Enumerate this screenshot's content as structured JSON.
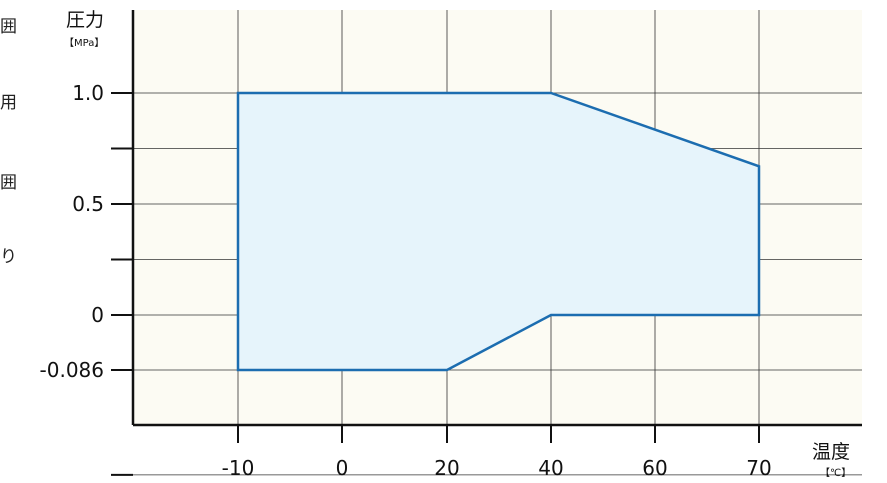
{
  "colors": {
    "plot_background": "#fcfbf3",
    "grid": "#333333",
    "axis": "#111111",
    "region_fill": "#e6f4fb",
    "region_stroke": "#1c6db0"
  },
  "left_edge_text": [
    "囲",
    "用",
    "囲",
    "り"
  ],
  "chart_data": {
    "type": "area",
    "ylabel": "圧力",
    "ylabel_unit": "【MPa】",
    "xlabel": "温度",
    "xlabel_unit": "【℃】",
    "x_ticks": [
      {
        "value": -10,
        "label": "-10"
      },
      {
        "value": 0,
        "label": "0"
      },
      {
        "value": 20,
        "label": "20"
      },
      {
        "value": 40,
        "label": "40"
      },
      {
        "value": 60,
        "label": "60"
      },
      {
        "value": 70,
        "label": "70"
      }
    ],
    "y_ticks": [
      {
        "value": 1.0,
        "label": "1.0"
      },
      {
        "value": 0.5,
        "label": "0.5"
      },
      {
        "value": 0,
        "label": "0"
      },
      {
        "value": -0.086,
        "label": "-0.086"
      }
    ],
    "region": [
      {
        "x": -10,
        "y": 1.0
      },
      {
        "x": 40,
        "y": 1.0
      },
      {
        "x": 70,
        "y": 0.67
      },
      {
        "x": 70,
        "y": 0
      },
      {
        "x": 40,
        "y": 0
      },
      {
        "x": 20,
        "y": -0.086
      },
      {
        "x": -10,
        "y": -0.086
      }
    ],
    "grid": true
  }
}
